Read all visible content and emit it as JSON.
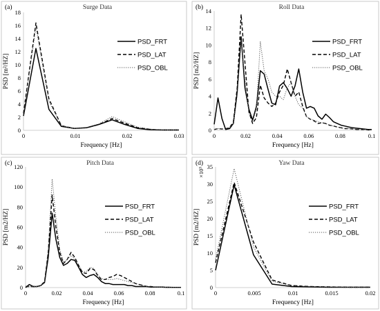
{
  "chart_data": [
    {
      "type": "line",
      "panel_label": "(a)",
      "title": "Surge Data",
      "xlabel": "Frequency [Hz]",
      "ylabel": "PSD [m²/HZ]",
      "y_multiplier": "",
      "xlim": [
        0,
        0.03
      ],
      "ylim": [
        0,
        18
      ],
      "xticks": [
        0,
        0.01,
        0.02,
        0.03
      ],
      "xtick_labels": [
        "0",
        "0.01",
        "0.02",
        "0.03"
      ],
      "yticks": [
        0,
        2,
        4,
        6,
        8,
        10,
        12,
        14,
        16,
        18
      ],
      "ytick_labels": [
        "0",
        "2",
        "4",
        "6",
        "8",
        "10",
        "12",
        "14",
        "16",
        "18"
      ],
      "legend_position": "right",
      "series": [
        {
          "name": "PSD_FRT",
          "style": "solid",
          "x": [
            0,
            0.0024,
            0.0049,
            0.0073,
            0.0098,
            0.0122,
            0.0146,
            0.0171,
            0.0195,
            0.022,
            0.0244,
            0.0268,
            0.03
          ],
          "y": [
            2.2,
            12.5,
            3.2,
            0.6,
            0.3,
            0.4,
            0.9,
            1.6,
            0.9,
            0.3,
            0.1,
            0.05,
            0.05
          ]
        },
        {
          "name": "PSD_LAT",
          "style": "dashed",
          "x": [
            0,
            0.0024,
            0.0049,
            0.0073,
            0.0098,
            0.0122,
            0.0146,
            0.0171,
            0.0195,
            0.022,
            0.0244,
            0.0268,
            0.03
          ],
          "y": [
            2.6,
            16.4,
            4.8,
            0.7,
            0.3,
            0.4,
            0.9,
            1.8,
            1.1,
            0.4,
            0.15,
            0.05,
            0.05
          ]
        },
        {
          "name": "PSD_OBL",
          "style": "dotted",
          "x": [
            0,
            0.0024,
            0.0049,
            0.0073,
            0.0098,
            0.0122,
            0.0146,
            0.0171,
            0.0195,
            0.022,
            0.0244,
            0.0268,
            0.03
          ],
          "y": [
            2.4,
            15.8,
            4.4,
            0.7,
            0.3,
            0.45,
            1.0,
            2.1,
            1.3,
            0.5,
            0.2,
            0.05,
            0.05
          ]
        }
      ]
    },
    {
      "type": "line",
      "panel_label": "(b)",
      "title": "Roll Data",
      "xlabel": "Frequency [Hz]",
      "ylabel": "PSD [m2/HZ]",
      "y_multiplier": "",
      "xlim": [
        0,
        0.1
      ],
      "ylim": [
        0,
        14
      ],
      "xticks": [
        0,
        0.02,
        0.04,
        0.06,
        0.08,
        0.1
      ],
      "xtick_labels": [
        "0",
        "0.02",
        "0.04",
        "0.06",
        "0.08",
        "0.1"
      ],
      "yticks": [
        0,
        2,
        4,
        6,
        8,
        10,
        12,
        14
      ],
      "ytick_labels": [
        "0",
        "2",
        "4",
        "6",
        "8",
        "10",
        "12",
        "14"
      ],
      "legend_position": "right",
      "series": [
        {
          "name": "PSD_FRT",
          "style": "solid",
          "x": [
            0,
            0.0024,
            0.0049,
            0.0073,
            0.0098,
            0.0122,
            0.0146,
            0.0171,
            0.0195,
            0.022,
            0.0244,
            0.0268,
            0.0293,
            0.0317,
            0.0342,
            0.0366,
            0.039,
            0.0415,
            0.0439,
            0.0464,
            0.0488,
            0.0513,
            0.0537,
            0.0562,
            0.0586,
            0.061,
            0.0635,
            0.0659,
            0.0684,
            0.0708,
            0.0732,
            0.0757,
            0.0781,
            0.0806,
            0.083,
            0.0854,
            0.0879,
            0.0903,
            0.0928,
            0.0952,
            0.0977,
            0.1
          ],
          "y": [
            0.7,
            3.8,
            1.4,
            0.1,
            0.2,
            0.8,
            4.5,
            11.0,
            5.0,
            2.5,
            1.2,
            2.8,
            7.0,
            6.6,
            4.8,
            3.2,
            3.0,
            5.2,
            5.6,
            4.9,
            4.0,
            5.2,
            7.2,
            4.5,
            2.6,
            2.8,
            2.6,
            1.7,
            1.3,
            1.9,
            1.5,
            1.0,
            0.8,
            0.6,
            0.5,
            0.4,
            0.3,
            0.25,
            0.2,
            0.15,
            0.1,
            0.1
          ]
        },
        {
          "name": "PSD_LAT",
          "style": "dashed",
          "x": [
            0,
            0.0024,
            0.0049,
            0.0073,
            0.0098,
            0.0122,
            0.0146,
            0.0171,
            0.0195,
            0.022,
            0.0244,
            0.0268,
            0.0293,
            0.0317,
            0.0342,
            0.0366,
            0.039,
            0.0415,
            0.0439,
            0.0464,
            0.0488,
            0.0513,
            0.0537,
            0.0562,
            0.0586,
            0.061,
            0.0635,
            0.0659,
            0.0684,
            0.0708,
            0.0732,
            0.0757,
            0.0781,
            0.0806,
            0.083,
            0.0854,
            0.0879,
            0.0903,
            0.0928,
            0.0952,
            0.0977,
            0.1
          ],
          "y": [
            0.1,
            0.2,
            0.15,
            0.2,
            0.3,
            1.0,
            5.0,
            13.6,
            8.0,
            2.2,
            0.8,
            1.5,
            5.3,
            3.8,
            3.2,
            2.8,
            3.2,
            4.5,
            5.3,
            7.2,
            5.6,
            4.0,
            4.5,
            2.8,
            1.6,
            1.3,
            1.1,
            0.8,
            0.9,
            0.8,
            0.6,
            0.5,
            0.4,
            0.3,
            0.2,
            0.2,
            0.15,
            0.1,
            0.1,
            0.1,
            0.05,
            0.05
          ]
        },
        {
          "name": "PSD_OBL",
          "style": "dotted",
          "x": [
            0,
            0.0024,
            0.0049,
            0.0073,
            0.0098,
            0.0122,
            0.0146,
            0.0171,
            0.0195,
            0.022,
            0.0244,
            0.0268,
            0.0293,
            0.0317,
            0.0342,
            0.0366,
            0.039,
            0.0415,
            0.0439,
            0.0464,
            0.0488,
            0.0513,
            0.0537,
            0.0562,
            0.0586,
            0.061,
            0.0635,
            0.0659,
            0.0684,
            0.0708,
            0.0732,
            0.0757,
            0.0781,
            0.0806,
            0.083,
            0.0854,
            0.0879,
            0.0903,
            0.0928,
            0.0952,
            0.0977,
            0.1
          ],
          "y": [
            0.1,
            0.2,
            0.15,
            0.2,
            0.3,
            0.8,
            4.0,
            10.6,
            6.0,
            2.0,
            1.0,
            2.5,
            10.4,
            7.0,
            6.0,
            4.5,
            4.0,
            4.0,
            3.6,
            5.0,
            5.6,
            4.0,
            3.0,
            2.6,
            1.6,
            1.3,
            1.2,
            1.0,
            0.9,
            0.8,
            0.6,
            0.5,
            0.4,
            0.3,
            0.2,
            0.2,
            0.15,
            0.1,
            0.1,
            0.1,
            0.05,
            0.05
          ]
        }
      ]
    },
    {
      "type": "line",
      "panel_label": "(c)",
      "title": "Pitch Data",
      "xlabel": "Frequency [Hz]",
      "ylabel": "PSD [m2/HZ]",
      "y_multiplier": "",
      "xlim": [
        0,
        0.1
      ],
      "ylim": [
        0,
        120
      ],
      "xticks": [
        0,
        0.02,
        0.04,
        0.06,
        0.08,
        0.1
      ],
      "xtick_labels": [
        "0",
        "0.02",
        "0.04",
        "0.06",
        "0.08",
        "0.1"
      ],
      "yticks": [
        0,
        20,
        40,
        60,
        80,
        100,
        120
      ],
      "ytick_labels": [
        "0",
        "20",
        "40",
        "60",
        "80",
        "100",
        "120"
      ],
      "legend_position": "right",
      "series": [
        {
          "name": "PSD_FRT",
          "style": "solid",
          "x": [
            0,
            0.0024,
            0.0049,
            0.0073,
            0.0098,
            0.0122,
            0.0146,
            0.0171,
            0.0195,
            0.022,
            0.0244,
            0.0268,
            0.0293,
            0.0317,
            0.0342,
            0.0366,
            0.039,
            0.0415,
            0.0439,
            0.0464,
            0.0488,
            0.0513,
            0.0537,
            0.0562,
            0.0586,
            0.061,
            0.0635,
            0.0659,
            0.0684,
            0.0708,
            0.0732,
            0.0757,
            0.0781,
            0.0806,
            0.083,
            0.0854,
            0.0879,
            0.0903,
            0.0928,
            0.0952,
            0.0977,
            0.1
          ],
          "y": [
            0,
            3,
            1,
            1,
            2,
            5,
            30,
            74,
            48,
            30,
            22,
            24,
            28,
            27,
            20,
            13,
            10,
            12,
            13,
            10,
            6,
            4,
            4,
            3,
            3,
            3,
            3,
            2,
            2,
            1,
            1,
            1,
            1,
            0.5,
            0.5,
            0.5,
            0.5,
            0.3,
            0.3,
            0.2,
            0.2,
            0.2
          ]
        },
        {
          "name": "PSD_LAT",
          "style": "dashed",
          "x": [
            0,
            0.0024,
            0.0049,
            0.0073,
            0.0098,
            0.0122,
            0.0146,
            0.0171,
            0.0195,
            0.022,
            0.0244,
            0.0268,
            0.0293,
            0.0317,
            0.0342,
            0.0366,
            0.039,
            0.0415,
            0.0439,
            0.0464,
            0.0488,
            0.0513,
            0.0537,
            0.0562,
            0.0586,
            0.061,
            0.0635,
            0.0659,
            0.0684,
            0.0708,
            0.0732,
            0.0757,
            0.0781,
            0.0806,
            0.083,
            0.0854,
            0.0879,
            0.0903,
            0.0928,
            0.0952,
            0.0977,
            0.1
          ],
          "y": [
            1,
            1,
            1,
            1,
            2,
            6,
            35,
            92,
            60,
            35,
            24,
            28,
            35,
            30,
            22,
            15,
            14,
            19,
            18,
            12,
            8,
            8,
            10,
            11,
            13,
            12,
            10,
            8,
            6,
            4,
            3,
            2,
            1,
            1,
            0.5,
            0.5,
            0.5,
            0.3,
            0.3,
            0.2,
            0.2,
            0.2
          ]
        },
        {
          "name": "PSD_OBL",
          "style": "dotted",
          "x": [
            0,
            0.0024,
            0.0049,
            0.0073,
            0.0098,
            0.0122,
            0.0146,
            0.0171,
            0.0195,
            0.022,
            0.0244,
            0.0268,
            0.0293,
            0.0317,
            0.0342,
            0.0366,
            0.039,
            0.0415,
            0.0439,
            0.0464,
            0.0488,
            0.0513,
            0.0537,
            0.0562,
            0.0586,
            0.061,
            0.0635,
            0.0659,
            0.0684,
            0.0708,
            0.0732,
            0.0757,
            0.0781,
            0.0806,
            0.083,
            0.0854,
            0.0879,
            0.0903,
            0.0928,
            0.0952,
            0.0977,
            0.1
          ],
          "y": [
            1,
            1,
            1,
            1,
            2,
            6,
            38,
            108,
            70,
            38,
            25,
            28,
            32,
            28,
            22,
            16,
            16,
            20,
            19,
            13,
            9,
            8,
            8,
            8,
            9,
            8,
            7,
            6,
            5,
            4,
            3,
            2,
            1,
            1,
            0.5,
            0.5,
            0.5,
            0.3,
            0.3,
            0.2,
            0.2,
            0.2
          ]
        }
      ]
    },
    {
      "type": "line",
      "panel_label": "(d)",
      "title": "Yaw Data",
      "xlabel": "Frequency [Hz]",
      "ylabel": "PSD [m2/HZ]",
      "y_multiplier": "×10³",
      "xlim": [
        0,
        0.02
      ],
      "ylim": [
        0,
        35
      ],
      "xticks": [
        0,
        0.005,
        0.01,
        0.015,
        0.02
      ],
      "xtick_labels": [
        "0",
        "0.005",
        "0.01",
        "0.015",
        "0.02"
      ],
      "yticks": [
        0,
        5,
        10,
        15,
        20,
        25,
        30,
        35
      ],
      "ytick_labels": [
        "0",
        "5",
        "10",
        "15",
        "20",
        "25",
        "30",
        "35"
      ],
      "legend_position": "right",
      "series": [
        {
          "name": "PSD_FRT",
          "style": "solid",
          "x": [
            0,
            0.0024,
            0.0049,
            0.0073,
            0.0098,
            0.0122,
            0.0146,
            0.0171,
            0.0195,
            0.02
          ],
          "y": [
            5.0,
            29.8,
            9.5,
            1.0,
            0.3,
            0.2,
            0.1,
            0.1,
            0.1,
            0.1
          ]
        },
        {
          "name": "PSD_LAT",
          "style": "dashed",
          "x": [
            0,
            0.0024,
            0.0049,
            0.0073,
            0.0098,
            0.0122,
            0.0146,
            0.0171,
            0.0195,
            0.02
          ],
          "y": [
            7.2,
            30.5,
            13.2,
            2.2,
            0.6,
            0.3,
            0.2,
            0.1,
            0.1,
            0.1
          ]
        },
        {
          "name": "PSD_OBL",
          "style": "dotted",
          "x": [
            0,
            0.0024,
            0.0049,
            0.0073,
            0.0098,
            0.0122,
            0.0146,
            0.0171,
            0.0195,
            0.02
          ],
          "y": [
            8.2,
            34.5,
            11.8,
            1.8,
            0.6,
            0.3,
            0.2,
            0.1,
            0.1,
            0.1
          ]
        }
      ]
    }
  ]
}
